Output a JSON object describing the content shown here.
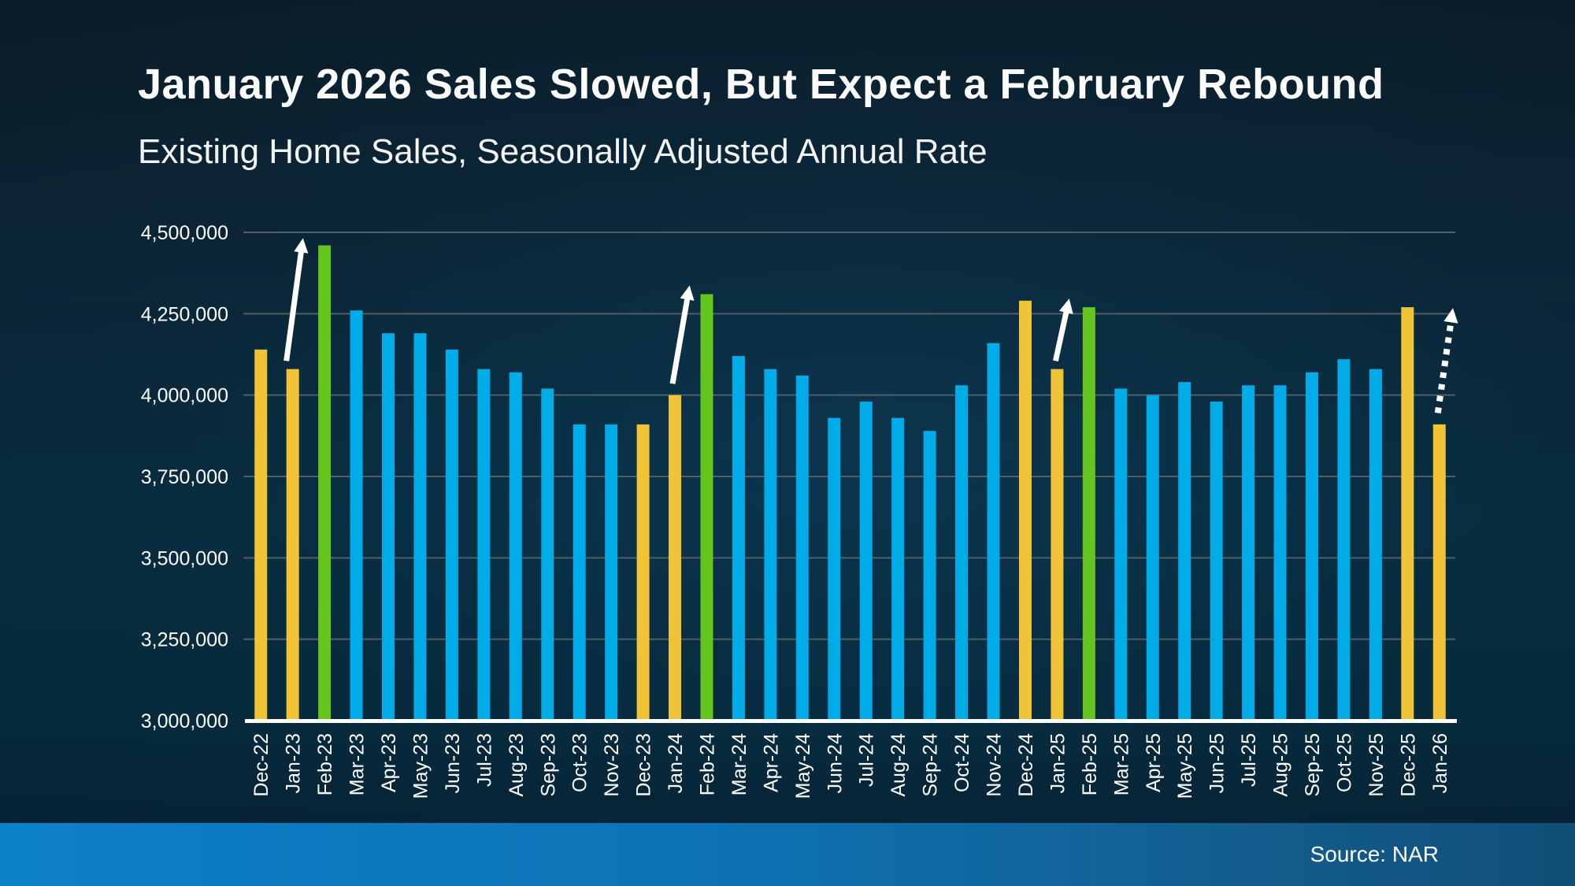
{
  "header": {
    "title": "January 2026 Sales Slowed, But Expect a February Rebound",
    "subtitle": "Existing Home Sales, Seasonally Adjusted Annual Rate"
  },
  "footer": {
    "source_label": "Source: NAR"
  },
  "colors": {
    "background_dark": "#0a1b28",
    "background_mid": "#082c40",
    "bar_blue": "#00ACE8",
    "bar_gold": "#F1C437",
    "bar_green": "#64C51C",
    "gridline": "#525D66",
    "axis_line": "#FFFFFF",
    "text": "#FFFFFF",
    "arrow": "#FFFFFF",
    "footer_left": "#0C80C8",
    "footer_right": "#114E77"
  },
  "chart_data": {
    "type": "bar",
    "title": "January 2026 Sales Slowed, But Expect a February Rebound",
    "subtitle": "Existing Home Sales, Seasonally Adjusted Annual Rate",
    "xlabel": "",
    "ylabel": "",
    "ylim": [
      3000000,
      4500000
    ],
    "ytick_interval": 250000,
    "ytick_labels": [
      "3,000,000",
      "3,250,000",
      "3,500,000",
      "3,750,000",
      "4,000,000",
      "4,250,000",
      "4,500,000"
    ],
    "grid": true,
    "legend": false,
    "categories": [
      "Dec-22",
      "Jan-23",
      "Feb-23",
      "Mar-23",
      "Apr-23",
      "May-23",
      "Jun-23",
      "Jul-23",
      "Aug-23",
      "Sep-23",
      "Oct-23",
      "Nov-23",
      "Dec-23",
      "Jan-24",
      "Feb-24",
      "Mar-24",
      "Apr-24",
      "May-24",
      "Jun-24",
      "Jul-24",
      "Aug-24",
      "Sep-24",
      "Oct-24",
      "Nov-24",
      "Dec-24",
      "Jan-25",
      "Feb-25",
      "Mar-25",
      "Apr-25",
      "May-25",
      "Jun-25",
      "Jul-25",
      "Aug-25",
      "Sep-25",
      "Oct-25",
      "Nov-25",
      "Dec-25",
      "Jan-26"
    ],
    "values": [
      4140000,
      4080000,
      4460000,
      4260000,
      4190000,
      4190000,
      4140000,
      4080000,
      4070000,
      4020000,
      3910000,
      3910000,
      3910000,
      4000000,
      4310000,
      4120000,
      4080000,
      4060000,
      3930000,
      3980000,
      3930000,
      3890000,
      4030000,
      4160000,
      4290000,
      4080000,
      4270000,
      4020000,
      4000000,
      4040000,
      3980000,
      4030000,
      4030000,
      4070000,
      4110000,
      4080000,
      4270000,
      3910000
    ],
    "bar_colors": [
      "gold",
      "gold",
      "green",
      "blue",
      "blue",
      "blue",
      "blue",
      "blue",
      "blue",
      "blue",
      "blue",
      "blue",
      "gold",
      "gold",
      "green",
      "blue",
      "blue",
      "blue",
      "blue",
      "blue",
      "blue",
      "blue",
      "blue",
      "blue",
      "gold",
      "gold",
      "green",
      "blue",
      "blue",
      "blue",
      "blue",
      "blue",
      "blue",
      "blue",
      "blue",
      "blue",
      "gold",
      "gold"
    ],
    "annotations": [
      {
        "name": "arrow-jan23-feb23",
        "style": "solid",
        "category": "Jan-23",
        "from_value": 4105000,
        "to_value": 4445000,
        "dx_from": -8,
        "dx_to": 11
      },
      {
        "name": "arrow-jan24-feb24",
        "style": "solid",
        "category": "Jan-24",
        "from_value": 4035000,
        "to_value": 4300000,
        "dx_from": -3,
        "dx_to": 16
      },
      {
        "name": "arrow-jan25-feb25",
        "style": "solid",
        "category": "Jan-25",
        "from_value": 4105000,
        "to_value": 4260000,
        "dx_from": -2,
        "dx_to": 12
      },
      {
        "name": "arrow-jan26-expected-rebound",
        "style": "dashed",
        "category": "Jan-26",
        "from_value": 3945000,
        "to_value": 4230000,
        "dx_from": -2,
        "dx_to": 15
      }
    ]
  }
}
